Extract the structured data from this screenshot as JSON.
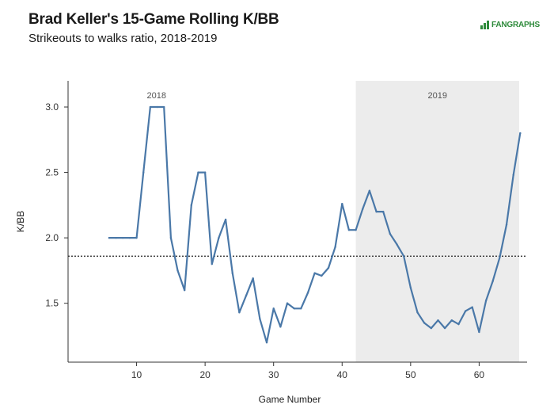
{
  "header": {
    "title": "Brad Keller's 15-Game Rolling K/BB",
    "subtitle": "Strikeouts to walks ratio, 2018-2019",
    "logo_text": "FANGRAPHS"
  },
  "chart_data": {
    "type": "line",
    "xlabel": "Game Number",
    "ylabel": "K/BB",
    "xlim": [
      0,
      67
    ],
    "ylim": [
      1.05,
      3.2
    ],
    "x_ticks": [
      10,
      20,
      30,
      40,
      50,
      60
    ],
    "y_ticks": [
      1.5,
      2.0,
      2.5,
      3.0
    ],
    "y_tick_labels": [
      "1.5",
      "2.0",
      "2.5",
      "3.0"
    ],
    "grid": false,
    "season_labels": [
      "2018",
      "2019"
    ],
    "season_boundary": 42,
    "reference_line": 1.86,
    "colors": {
      "line": "#4a78a8",
      "shade": "#ececec",
      "axis": "#333333",
      "reference": "#222222"
    },
    "series": [
      {
        "x": [
          6,
          7,
          8,
          9,
          10,
          11,
          12,
          13,
          14,
          15,
          16,
          17,
          18,
          19,
          20,
          21,
          22,
          23,
          24,
          25,
          26,
          27,
          28,
          29,
          30,
          31,
          32,
          33,
          34,
          35,
          36,
          37,
          38,
          39,
          40,
          41,
          42,
          43,
          44,
          45,
          46,
          47,
          48,
          49,
          50,
          51,
          52,
          53,
          54,
          55,
          56,
          57,
          58,
          59,
          60,
          61,
          62,
          63,
          64,
          65,
          66
        ],
        "y": [
          2.0,
          2.0,
          2.0,
          2.0,
          2.0,
          2.5,
          3.0,
          3.0,
          3.0,
          2.0,
          1.75,
          1.6,
          2.25,
          2.5,
          2.5,
          1.8,
          2.0,
          2.14,
          1.73,
          1.43,
          1.56,
          1.69,
          1.38,
          1.2,
          1.46,
          1.32,
          1.5,
          1.46,
          1.46,
          1.58,
          1.73,
          1.71,
          1.77,
          1.93,
          2.26,
          2.06,
          2.06,
          2.22,
          2.36,
          2.2,
          2.2,
          2.03,
          1.95,
          1.86,
          1.62,
          1.43,
          1.35,
          1.31,
          1.37,
          1.31,
          1.37,
          1.34,
          1.44,
          1.47,
          1.28,
          1.52,
          1.67,
          1.85,
          2.1,
          2.48,
          2.8
        ]
      }
    ]
  }
}
